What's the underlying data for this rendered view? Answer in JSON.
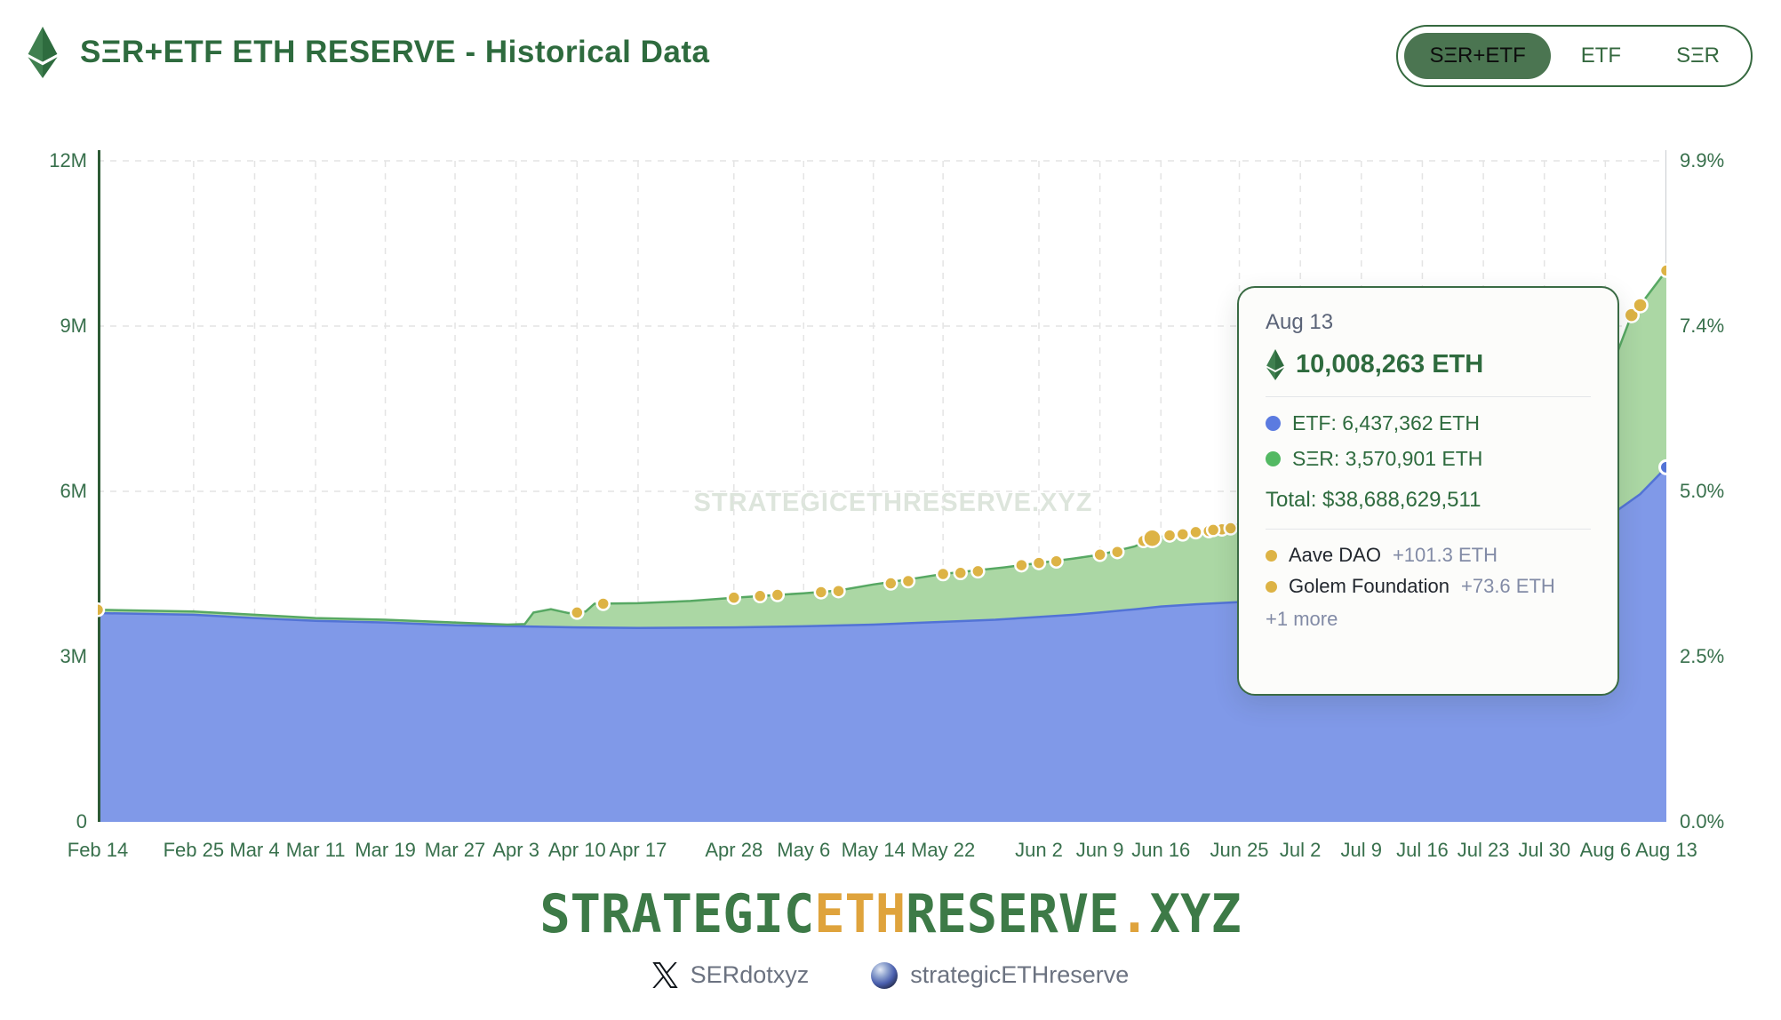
{
  "header": {
    "title": "SΞR+ETF ETH RESERVE - Historical Data",
    "toggle_options": [
      {
        "label": "SΞR+ETF",
        "selected": true
      },
      {
        "label": "ETF",
        "selected": false
      },
      {
        "label": "SΞR",
        "selected": false
      }
    ]
  },
  "watermark": "STRATEGICETHRESERVE.XYZ",
  "chart_data": {
    "type": "area",
    "title": "SΞR+ETF ETH RESERVE - Historical Data",
    "stacked": false,
    "grid": "dashed",
    "legend_position": "tooltip-only",
    "x_tick_labels": [
      "Feb 14",
      "Feb 25",
      "Mar 4",
      "Mar 11",
      "Mar 19",
      "Mar 27",
      "Apr 3",
      "Apr 10",
      "Apr 17",
      "Apr 28",
      "May 6",
      "May 14",
      "May 22",
      "Jun 2",
      "Jun 9",
      "Jun 16",
      "Jun 25",
      "Jul 2",
      "Jul 9",
      "Jul 16",
      "Jul 23",
      "Jul 30",
      "Aug 6",
      "Aug 13"
    ],
    "x_tick_days": [
      0,
      11,
      18,
      25,
      33,
      41,
      48,
      55,
      62,
      73,
      81,
      89,
      97,
      108,
      115,
      122,
      131,
      138,
      145,
      152,
      159,
      166,
      173,
      180
    ],
    "x_range_days": [
      0,
      180
    ],
    "ylabel_left_ticks": [
      "0",
      "3M",
      "6M",
      "9M",
      "12M"
    ],
    "ylabel_left_values": [
      0,
      3,
      6,
      9,
      12
    ],
    "ylabel_right_ticks": [
      "0.0%",
      "2.5%",
      "5.0%",
      "7.4%",
      "9.9%"
    ],
    "ylim_millions": [
      0,
      12
    ],
    "colors": {
      "etf_fill": "#8099e8",
      "etf_line": "#5273d6",
      "ser_fill": "#abd7a4",
      "ser_line": "#57a863",
      "event_dot": "#ddb345",
      "axis": "#2d5a35",
      "gridline": "#e4e4e4",
      "crosshair": "#c9ccd1"
    },
    "series": [
      {
        "name": "ETF (millions ETH)",
        "points": [
          [
            0,
            3.79
          ],
          [
            11,
            3.76
          ],
          [
            18,
            3.7
          ],
          [
            25,
            3.65
          ],
          [
            33,
            3.62
          ],
          [
            41,
            3.57
          ],
          [
            48,
            3.55
          ],
          [
            55,
            3.53
          ],
          [
            62,
            3.52
          ],
          [
            73,
            3.53
          ],
          [
            81,
            3.55
          ],
          [
            89,
            3.58
          ],
          [
            97,
            3.63
          ],
          [
            103,
            3.67
          ],
          [
            108,
            3.72
          ],
          [
            112,
            3.76
          ],
          [
            115,
            3.8
          ],
          [
            119,
            3.86
          ],
          [
            122,
            3.91
          ],
          [
            126,
            3.95
          ],
          [
            131,
            3.99
          ],
          [
            138,
            4.03
          ],
          [
            145,
            4.06
          ],
          [
            152,
            4.12
          ],
          [
            159,
            4.3
          ],
          [
            166,
            4.8
          ],
          [
            170,
            5.1
          ],
          [
            173,
            5.5
          ],
          [
            177,
            5.95
          ],
          [
            180,
            6.437
          ]
        ]
      },
      {
        "name": "SΞR+ETF total (millions ETH)",
        "points": [
          [
            0,
            3.85
          ],
          [
            11,
            3.82
          ],
          [
            18,
            3.76
          ],
          [
            25,
            3.7
          ],
          [
            33,
            3.67
          ],
          [
            41,
            3.62
          ],
          [
            47,
            3.58
          ],
          [
            49,
            3.59
          ],
          [
            50,
            3.8
          ],
          [
            52,
            3.86
          ],
          [
            54,
            3.79
          ],
          [
            55,
            3.8
          ],
          [
            56,
            3.82
          ],
          [
            57,
            3.96
          ],
          [
            62,
            3.97
          ],
          [
            68,
            4.01
          ],
          [
            73,
            4.07
          ],
          [
            78,
            4.12
          ],
          [
            81,
            4.15
          ],
          [
            85,
            4.2
          ],
          [
            89,
            4.31
          ],
          [
            93,
            4.4
          ],
          [
            97,
            4.5
          ],
          [
            101,
            4.57
          ],
          [
            104,
            4.62
          ],
          [
            108,
            4.7
          ],
          [
            112,
            4.78
          ],
          [
            115,
            4.85
          ],
          [
            119,
            5.0
          ],
          [
            121,
            5.15
          ],
          [
            123,
            5.2
          ],
          [
            126,
            5.26
          ],
          [
            129,
            5.31
          ],
          [
            131,
            5.4
          ],
          [
            134,
            5.45
          ],
          [
            138,
            5.5
          ],
          [
            145,
            5.62
          ],
          [
            152,
            5.78
          ],
          [
            159,
            6.1
          ],
          [
            166,
            6.9
          ],
          [
            170,
            7.4
          ],
          [
            173,
            7.95
          ],
          [
            176,
            9.2
          ],
          [
            177,
            9.38
          ],
          [
            180,
            10.008
          ]
        ]
      }
    ],
    "event_dots": [
      [
        0,
        3.85,
        7
      ],
      [
        55,
        3.8,
        7
      ],
      [
        58,
        3.96,
        7
      ],
      [
        73,
        4.07,
        7
      ],
      [
        76,
        4.1,
        7
      ],
      [
        78,
        4.12,
        7
      ],
      [
        83,
        4.17,
        7
      ],
      [
        85,
        4.19,
        7
      ],
      [
        91,
        4.33,
        7
      ],
      [
        93,
        4.37,
        7
      ],
      [
        97,
        4.5,
        7
      ],
      [
        99,
        4.52,
        7
      ],
      [
        101,
        4.55,
        7
      ],
      [
        106,
        4.66,
        7
      ],
      [
        108,
        4.7,
        7
      ],
      [
        110,
        4.73,
        7
      ],
      [
        115,
        4.85,
        7
      ],
      [
        117,
        4.9,
        7
      ],
      [
        120,
        5.1,
        7
      ],
      [
        121,
        5.15,
        10
      ],
      [
        123,
        5.2,
        7
      ],
      [
        124.5,
        5.22,
        7
      ],
      [
        126,
        5.26,
        7
      ],
      [
        127.5,
        5.28,
        7
      ],
      [
        129,
        5.31,
        7
      ],
      [
        128,
        5.3,
        7
      ],
      [
        130,
        5.33,
        7
      ],
      [
        176,
        9.2,
        8
      ],
      [
        177,
        9.38,
        8
      ],
      [
        180,
        10.008,
        7
      ]
    ],
    "end_markers": {
      "crosshair_day": 180,
      "total_value": 10.008,
      "etf_value": 6.437
    }
  },
  "tooltip": {
    "date": "Aug 13",
    "total_eth": "10,008,263 ETH",
    "etf_line": "ETF: 6,437,362 ETH",
    "ser_line": "SΞR: 3,570,901 ETH",
    "total_usd": "Total: $38,688,629,511",
    "events": [
      {
        "name": "Aave DAO",
        "delta": "+101.3 ETH"
      },
      {
        "name": "Golem Foundation",
        "delta": "+73.6 ETH"
      }
    ],
    "more": "+1 more"
  },
  "footer": {
    "logo_parts": [
      {
        "text": "STRATEGIC",
        "color": "#3d7a47"
      },
      {
        "text": "ETH",
        "color": "#dfa33c"
      },
      {
        "text": "RESERVE",
        "color": "#3d7a47"
      },
      {
        "text": ".",
        "color": "#dfa33c"
      },
      {
        "text": "XYZ",
        "color": "#3d7a47"
      }
    ],
    "social": [
      {
        "icon": "x-logo-icon",
        "handle": "SERdotxyz"
      },
      {
        "icon": "sphere-orb-icon",
        "handle": "strategicETHreserve"
      }
    ]
  }
}
